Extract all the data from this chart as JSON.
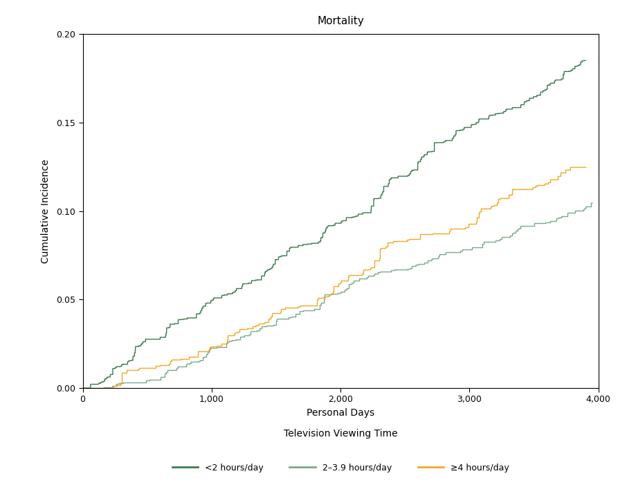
{
  "title": "Mortality",
  "xlabel": "Personal Days",
  "xlabel2": "Television Viewing Time",
  "ylabel": "Cumulative Incidence",
  "xlim": [
    0,
    4000
  ],
  "ylim": [
    0.0,
    0.2
  ],
  "yticks": [
    0.0,
    0.05,
    0.1,
    0.15,
    0.2
  ],
  "xticks": [
    0,
    1000,
    2000,
    3000,
    4000
  ],
  "xtick_labels": [
    "0",
    "1,000",
    "2,000",
    "3,000",
    "4,000"
  ],
  "legend_labels": [
    "<2 hours/day",
    "2–3.9 hours/day",
    "≥4 hours/day"
  ],
  "colors": {
    "lt2": "#3d7a50",
    "mid": "#7aaa8a",
    "ge4": "#f5a623"
  },
  "line_width": 1.0,
  "background_color": "#ffffff",
  "title_fontsize": 11,
  "axis_label_fontsize": 10,
  "tick_fontsize": 9,
  "legend_fontsize": 9
}
